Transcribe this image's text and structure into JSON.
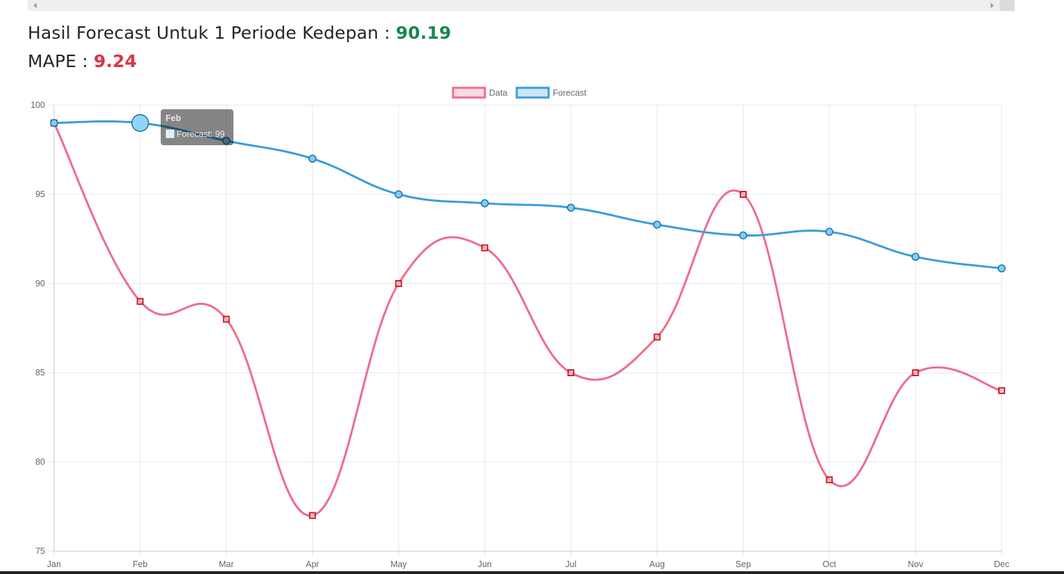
{
  "heading": {
    "forecast_label": "Hasil Forecast Untuk 1 Periode Kedepan : ",
    "forecast_value": "90.19",
    "mape_label": "MAPE : ",
    "mape_value": "9.24"
  },
  "colors": {
    "data_line": "#f06b8b",
    "data_point": "#c8202f",
    "forecast_line": "#3a9ddb",
    "forecast_point": "#7ccff7",
    "forecast_value": "#198754",
    "mape_value": "#dc3545"
  },
  "chart_data": {
    "type": "line",
    "categories": [
      "Jan",
      "Feb",
      "Mar",
      "Apr",
      "May",
      "Jun",
      "Jul",
      "Aug",
      "Sep",
      "Oct",
      "Nov",
      "Dec"
    ],
    "series": [
      {
        "name": "Data",
        "values": [
          99,
          89,
          88,
          77,
          90,
          92,
          85,
          87,
          95,
          79,
          85,
          84
        ]
      },
      {
        "name": "Forecast",
        "values": [
          99,
          99,
          98,
          97,
          95,
          94.5,
          94.25,
          93.3,
          92.7,
          92.9,
          91.5,
          90.85
        ]
      }
    ],
    "ylim": [
      75,
      100
    ],
    "yticks": [
      100,
      95,
      90,
      85,
      80,
      75
    ],
    "grid": true,
    "legend": "top-center",
    "tooltip": {
      "title": "Feb",
      "text": "Forecast: 99"
    }
  }
}
